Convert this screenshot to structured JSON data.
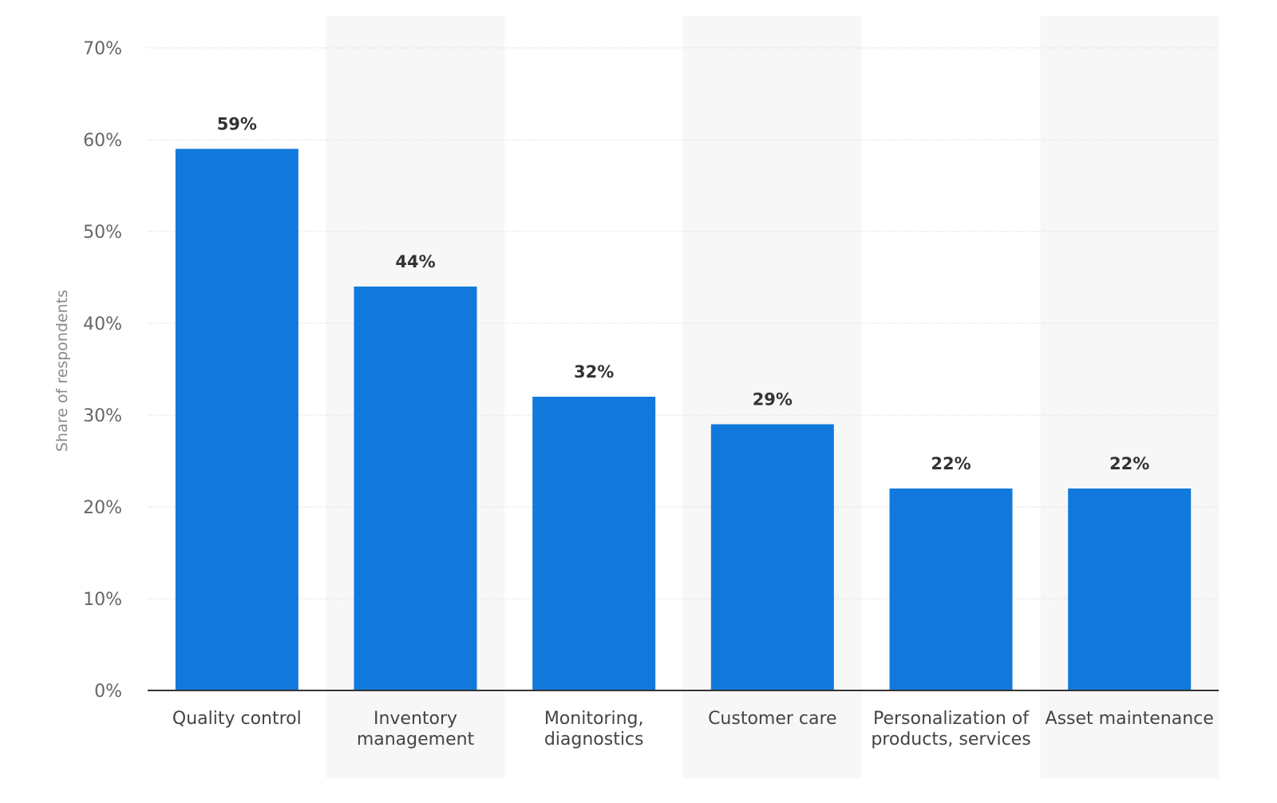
{
  "chart_data": {
    "type": "bar",
    "categories": [
      "Quality control",
      "Inventory management",
      "Monitoring, diagnostics",
      "Customer care",
      "Personalization of products, services",
      "Asset maintenance"
    ],
    "category_lines": [
      [
        "Quality control"
      ],
      [
        "Inventory",
        "management"
      ],
      [
        "Monitoring,",
        "diagnostics"
      ],
      [
        "Customer care"
      ],
      [
        "Personalization of",
        "products, services"
      ],
      [
        "Asset maintenance"
      ]
    ],
    "values": [
      59,
      44,
      32,
      29,
      22,
      22
    ],
    "data_labels": [
      "59%",
      "44%",
      "32%",
      "29%",
      "22%",
      "22%"
    ],
    "ylabel": "Share of respondents",
    "ylim": [
      0,
      70
    ],
    "yticks": [
      0,
      10,
      20,
      30,
      40,
      50,
      60,
      70
    ],
    "ytick_labels": [
      "0%",
      "10%",
      "20%",
      "30%",
      "40%",
      "50%",
      "60%",
      "70%"
    ],
    "grid": true,
    "legend": "none",
    "colors": {
      "bar": "#1279DC",
      "band": "#F7F7F7",
      "grid": "#DDDDDD",
      "axis": "#333333"
    }
  }
}
